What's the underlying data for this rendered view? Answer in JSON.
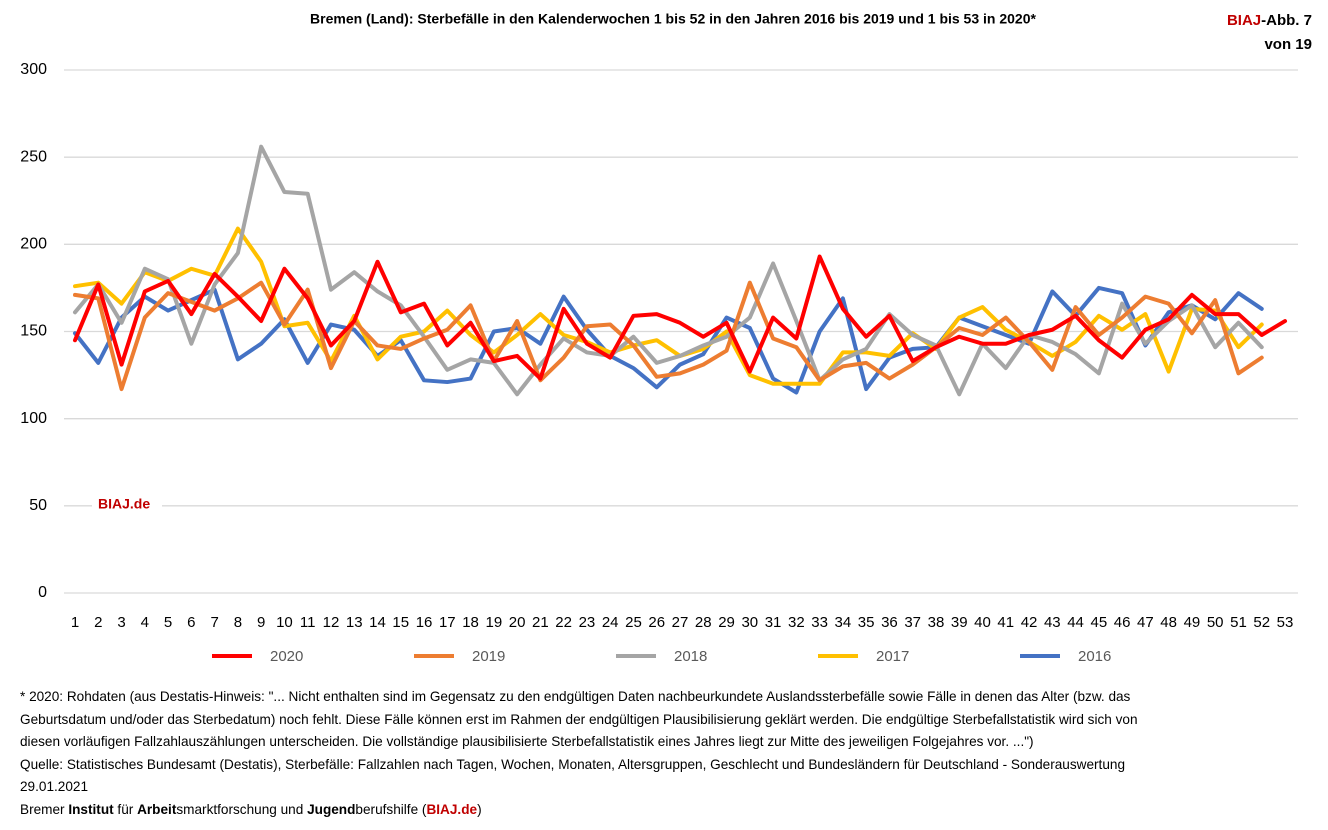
{
  "chart_data": {
    "type": "line",
    "title": "Bremen (Land): Sterbefälle in den Kalenderwochen 1 bis 52 in den Jahren 2016 bis 2019 und 1 bis 53 in 2020*",
    "badge": [
      "BIAJ",
      "-Abb. 7"
    ],
    "badge_line2": "von 19",
    "watermark": "BIAJ.de",
    "categories": [
      "1",
      "2",
      "3",
      "4",
      "5",
      "6",
      "7",
      "8",
      "9",
      "10",
      "11",
      "12",
      "13",
      "14",
      "15",
      "16",
      "17",
      "18",
      "19",
      "20",
      "21",
      "22",
      "23",
      "24",
      "25",
      "26",
      "27",
      "28",
      "29",
      "30",
      "31",
      "32",
      "33",
      "34",
      "35",
      "36",
      "37",
      "38",
      "39",
      "40",
      "41",
      "42",
      "43",
      "44",
      "45",
      "46",
      "47",
      "48",
      "49",
      "50",
      "51",
      "52",
      "53"
    ],
    "ylim": [
      0,
      300
    ],
    "yticks": [
      0,
      50,
      100,
      150,
      200,
      250,
      300
    ],
    "grid": true,
    "legend": "bottom",
    "series": [
      {
        "name": "2020",
        "color": "#ff0000",
        "values": [
          145,
          177,
          131,
          173,
          179,
          160,
          183,
          170,
          156,
          186,
          169,
          142,
          156,
          190,
          161,
          166,
          142,
          155,
          133,
          136,
          123,
          163,
          143,
          135,
          159,
          160,
          155,
          147,
          155,
          127,
          158,
          146,
          193,
          163,
          147,
          159,
          133,
          141,
          147,
          143,
          143,
          148,
          151,
          159,
          145,
          135,
          151,
          157,
          171,
          160,
          160,
          148,
          156
        ]
      },
      {
        "name": "2019",
        "color": "#ed7d31",
        "values": [
          171,
          169,
          117,
          158,
          172,
          167,
          162,
          169,
          178,
          154,
          174,
          129,
          156,
          142,
          140,
          146,
          151,
          165,
          133,
          156,
          122,
          135,
          153,
          154,
          142,
          124,
          126,
          131,
          139,
          178,
          146,
          141,
          122,
          130,
          132,
          123,
          131,
          141,
          152,
          148,
          158,
          144,
          128,
          164,
          148,
          158,
          170,
          166,
          149,
          168,
          126,
          135,
          null
        ]
      },
      {
        "name": "2018",
        "color": "#a5a5a5",
        "values": [
          161,
          177,
          155,
          186,
          180,
          143,
          177,
          195,
          256,
          230,
          229,
          174,
          184,
          173,
          165,
          147,
          128,
          134,
          132,
          114,
          131,
          146,
          138,
          136,
          147,
          132,
          136,
          142,
          147,
          158,
          189,
          156,
          122,
          134,
          140,
          160,
          148,
          142,
          114,
          143,
          129,
          148,
          144,
          137,
          126,
          166,
          143,
          156,
          165,
          141,
          155,
          141,
          null
        ]
      },
      {
        "name": "2017",
        "color": "#ffc000",
        "values": [
          176,
          178,
          166,
          184,
          179,
          186,
          182,
          209,
          190,
          153,
          155,
          133,
          159,
          134,
          147,
          150,
          162,
          148,
          138,
          148,
          160,
          148,
          144,
          138,
          142,
          145,
          136,
          140,
          150,
          125,
          120,
          120,
          120,
          138,
          138,
          136,
          149,
          140,
          158,
          164,
          151,
          144,
          136,
          144,
          159,
          151,
          160,
          127,
          163,
          162,
          141,
          154,
          null
        ]
      },
      {
        "name": "2016",
        "color": "#4472c4",
        "values": [
          149,
          132,
          158,
          170,
          162,
          168,
          174,
          134,
          143,
          157,
          132,
          154,
          151,
          136,
          145,
          122,
          121,
          123,
          150,
          152,
          143,
          170,
          151,
          136,
          129,
          118,
          131,
          137,
          158,
          152,
          123,
          115,
          150,
          169,
          117,
          135,
          140,
          141,
          158,
          153,
          148,
          143,
          173,
          159,
          175,
          172,
          142,
          161,
          165,
          157,
          172,
          163,
          null
        ]
      }
    ],
    "footnotes": [
      "* 2020: Rohdaten (aus Destatis-Hinweis: \"... Nicht enthalten sind im Gegensatz zu den endgültigen Daten nachbeurkundete Auslandssterbefälle sowie Fälle in denen das Alter (bzw. das",
      "Geburtsdatum und/oder das Sterbedatum) noch fehlt. Diese Fälle können erst im Rahmen der endgültigen Plausibilisierung geklärt werden. Die endgültige Sterbefallstatistik wird sich von",
      "diesen vorläufigen Fallzahlauszählungen unterscheiden. Die vollständige plausibilisierte Sterbefallstatistik eines Jahres liegt zur Mitte des jeweiligen Folgejahres vor. ...\")",
      "Quelle: Statistisches Bundesamt (Destatis), Sterbefälle: Fallzahlen nach Tagen, Wochen, Monaten, Altersgruppen, Geschlecht und Bundesländern für Deutschland - Sonderauswertung",
      "29.01.2021"
    ],
    "credit": [
      "Bremer ",
      "Institut",
      " für ",
      "Arbeit",
      "smarktforschung und ",
      "Jugend",
      "berufshilfe (",
      "BIAJ.de",
      ")"
    ]
  }
}
